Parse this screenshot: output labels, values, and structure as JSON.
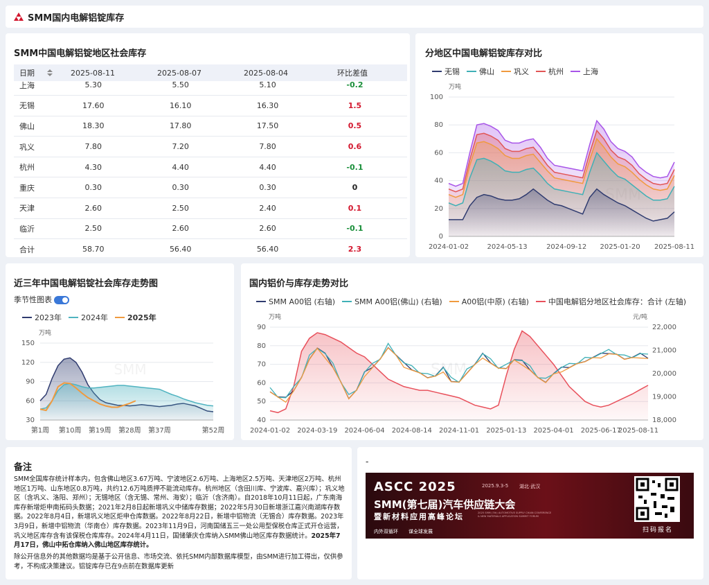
{
  "header": {
    "title": "SMM国内电解铝锭库存"
  },
  "table_card": {
    "title": "SMM中国电解铝锭地区社会库存",
    "columns": [
      "日期",
      "2025-08-11",
      "2025-08-07",
      "2025-08-04",
      "环比差值"
    ],
    "rows": [
      {
        "region": "上海",
        "v1": "5.30",
        "v2": "5.50",
        "v3": "5.10",
        "diff": "-0.2",
        "diff_color": "#1a8f3a"
      },
      {
        "region": "无锡",
        "v1": "17.60",
        "v2": "16.10",
        "v3": "16.30",
        "diff": "1.5",
        "diff_color": "#d3172e"
      },
      {
        "region": "佛山",
        "v1": "18.30",
        "v2": "17.80",
        "v3": "17.50",
        "diff": "0.5",
        "diff_color": "#d3172e"
      },
      {
        "region": "巩义",
        "v1": "7.80",
        "v2": "7.20",
        "v3": "7.80",
        "diff": "0.6",
        "diff_color": "#d3172e"
      },
      {
        "region": "杭州",
        "v1": "4.30",
        "v2": "4.40",
        "v3": "4.40",
        "diff": "-0.1",
        "diff_color": "#1a8f3a"
      },
      {
        "region": "重庆",
        "v1": "0.30",
        "v2": "0.30",
        "v3": "0.30",
        "diff": "0",
        "diff_color": "#222222"
      },
      {
        "region": "天津",
        "v1": "2.60",
        "v2": "2.50",
        "v3": "2.40",
        "diff": "0.1",
        "diff_color": "#d3172e"
      },
      {
        "region": "临沂",
        "v1": "2.50",
        "v2": "2.60",
        "v3": "2.60",
        "diff": "-0.1",
        "diff_color": "#1a8f3a"
      },
      {
        "region": "合计",
        "v1": "58.70",
        "v2": "56.40",
        "v3": "56.40",
        "diff": "2.3",
        "diff_color": "#d3172e"
      }
    ]
  },
  "chart_data": [
    {
      "id": "regional",
      "type": "area",
      "title": "分地区中国电解铝锭库存对比",
      "ylabel": "万吨",
      "ylim": [
        0,
        100
      ],
      "yticks": [
        0,
        20,
        40,
        60,
        80,
        100
      ],
      "xticks": [
        "2024-01-02",
        "2024-05-13",
        "2024-09-12",
        "2025-01-20",
        "2025-08-11"
      ],
      "stacked": true,
      "series": [
        {
          "name": "无锡",
          "color": "#2f3b6f",
          "values": [
            12,
            12,
            12,
            22,
            28,
            30,
            29,
            27,
            26,
            26,
            27,
            30,
            34,
            30,
            26,
            23,
            22,
            20,
            18,
            16,
            28,
            34,
            30,
            27,
            24,
            22,
            19,
            16,
            13,
            11,
            12,
            13,
            17.6
          ]
        },
        {
          "name": "佛山",
          "color": "#3fb0b6",
          "values": [
            12,
            10,
            12,
            20,
            27,
            26,
            25,
            24,
            21,
            20,
            19,
            18,
            15,
            14,
            12,
            11,
            11,
            12,
            13,
            14,
            18,
            26,
            24,
            21,
            19,
            19,
            18,
            17,
            16,
            15,
            14,
            14,
            18.3
          ]
        },
        {
          "name": "巩义",
          "color": "#f09a3e",
          "values": [
            6,
            6,
            6,
            9,
            12,
            12,
            12,
            12,
            11,
            10,
            10,
            10,
            10,
            9,
            9,
            8,
            8,
            8,
            8,
            8,
            9,
            10,
            10,
            9,
            9,
            9,
            9,
            8,
            8,
            8,
            7,
            7,
            7.8
          ]
        },
        {
          "name": "杭州",
          "color": "#e15555",
          "values": [
            4,
            4,
            4,
            4,
            6,
            6,
            6,
            6,
            5,
            5,
            5,
            5,
            5,
            5,
            4,
            4,
            4,
            4,
            4,
            4,
            5,
            6,
            6,
            5,
            5,
            5,
            5,
            4,
            4,
            4,
            4,
            4,
            4.3
          ]
        },
        {
          "name": "上海",
          "color": "#a855e8",
          "values": [
            4,
            4,
            4,
            5,
            7,
            7,
            7,
            7,
            6,
            6,
            6,
            6,
            6,
            6,
            5,
            5,
            5,
            5,
            5,
            5,
            6,
            7,
            7,
            6,
            6,
            6,
            6,
            5,
            5,
            5,
            5,
            5,
            5.3
          ]
        }
      ]
    },
    {
      "id": "threeyear",
      "type": "line",
      "title": "近三年中国电解铝锭社会库存走势图",
      "ylabel": "万吨",
      "ylim": [
        30,
        150
      ],
      "yticks": [
        30,
        60,
        90,
        120,
        150
      ],
      "xticks": [
        "第1周",
        "第10周",
        "第19周",
        "第28周",
        "第37周",
        "第52周"
      ],
      "series": [
        {
          "name": "2023年",
          "color": "#2f3b6f",
          "values": [
            60,
            70,
            95,
            115,
            125,
            127,
            120,
            105,
            85,
            72,
            62,
            57,
            55,
            53,
            53,
            52,
            53,
            54,
            53,
            52,
            51,
            52,
            53,
            55,
            56,
            54,
            52,
            48,
            44,
            43
          ]
        },
        {
          "name": "2024年",
          "color": "#4fb3c0",
          "values": [
            47,
            49,
            60,
            76,
            85,
            87,
            85,
            82,
            80,
            80,
            81,
            82,
            83,
            84,
            84,
            83,
            82,
            81,
            80,
            79,
            78,
            74,
            70,
            67,
            63,
            60,
            57,
            55,
            53,
            52
          ]
        },
        {
          "name": "2025年",
          "color": "#f09a3e",
          "values": [
            47,
            45,
            60,
            82,
            88,
            87,
            80,
            72,
            65,
            60,
            55,
            52,
            50,
            50,
            53,
            56,
            60
          ]
        }
      ]
    },
    {
      "id": "pricevsinv",
      "type": "line",
      "title": "国内铝价与库存走势对比",
      "ylabel": "万吨",
      "ylabel_right": "元/吨",
      "ylim": [
        40,
        90
      ],
      "ylim_right": [
        18000,
        22000
      ],
      "yticks": [
        40,
        50,
        60,
        70,
        80,
        90
      ],
      "yticks_right": [
        "18,000",
        "19,000",
        "20,000",
        "21,000",
        "22,000"
      ],
      "xticks": [
        "2024-01-02",
        "2024-03-19",
        "2024-06-04",
        "2024-08-14",
        "2024-11-01",
        "2025-01-13",
        "2025-04-01",
        "2025-06-17",
        "2025-08-11"
      ],
      "series": [
        {
          "name": "SMM A00铝 (右轴)",
          "color": "#2f3b6f",
          "axis": "right"
        },
        {
          "name": "SMM A00铝(佛山) (右轴)",
          "color": "#3fb0b6",
          "axis": "right"
        },
        {
          "name": "A00铝(中原) (右轴)",
          "color": "#f09a3e",
          "axis": "right"
        },
        {
          "name": "中国电解铝分地区社会库存：合计 (左轴)",
          "color": "#e8505b",
          "axis": "left"
        }
      ],
      "inventory": [
        45,
        44,
        46,
        58,
        77,
        84,
        87,
        86,
        84,
        82,
        79,
        76,
        74,
        70,
        66,
        62,
        60,
        58,
        57,
        56,
        56,
        55,
        54,
        53,
        52,
        50,
        48,
        47,
        46,
        48,
        64,
        78,
        88,
        85,
        80,
        75,
        70,
        64,
        58,
        54,
        50,
        48,
        47,
        48,
        50,
        52,
        54,
        56.4,
        58.7
      ],
      "price": [
        19300,
        19000,
        18900,
        19300,
        19800,
        20700,
        21100,
        20800,
        20300,
        19600,
        19000,
        19300,
        20000,
        20300,
        20600,
        21200,
        20800,
        20400,
        20200,
        20000,
        19900,
        19900,
        20200,
        19700,
        19600,
        20100,
        20400,
        20800,
        20500,
        20200,
        20300,
        20600,
        20500,
        20200,
        19800,
        19700,
        20000,
        20200,
        20300,
        20400,
        20600,
        20700,
        20800,
        20900,
        20800,
        20700,
        20700,
        20800,
        20700
      ]
    }
  ],
  "notes_card": {
    "title": "备注",
    "para1": "SMM全国库存统计样本内，包含佛山地区3.67万吨、宁波地区2.6万吨、上海地区2.5万吨、天津地区2万吨、杭州地区1万吨、山东地区0.8万吨，共约12.6万吨质押不能流动库存。杭州地区（含田川库、宁波库、嘉兴库）；巩义地区（含巩义、洛阳、郑州）；无锡地区（含无锡、常州、海安）；临沂（含济南）。自2018年10月11日起，广东南海库存新增炬申南拓码头数据；2021年2月8日起新增巩义中储库存数据；2022年5月30日新增浙江嘉兴南湖库存数据。2022年8月4日，新增巩义地区炬申仓库数据。2022年8月22日，新增中铝物流（无锡合）库存数据。2023年3月9日，新增中铝物流（华南仓）库存数据。2023年11月9日，河南国储五三一处公用型保税仓库正式开仓运营，巩义地区库存含有该保税仓库库存。2024年4月11日，国储肇庆仓库纳入SMM佛山地区库存数据统计。",
    "para1_bold": "2025年7月17日，佛山中拓仓库纳入佛山地区库存统计。",
    "para2": "除公开信息外的其他数据均是基于公开信息、市场交流、依托SMM内部数据库模型，由SMM进行加工得出，仅供参考，不构成决策建议。铝锭库存已在9点前在数据库更新"
  },
  "ad_card": {
    "dash": "-",
    "brand": "ASCC 2025",
    "date": "2025.9.3-5",
    "place": "湖北·武汉",
    "headline": "SMM(第七届)汽车供应链大会",
    "subline": "暨新材料应用高峰论坛",
    "en_line1": "2025 SMM (7th) AUTOMOTIVE SUPPLY CHAIN CONFERENCE",
    "en_line2": "& NEW MATERIALS APPLICATION SUMMIT FORUM",
    "tag1": "内外双循环",
    "tag2": "谋全球发展",
    "qr_label": "扫码报名"
  },
  "toggle_label": "季节性图表",
  "watermark": "SMM"
}
